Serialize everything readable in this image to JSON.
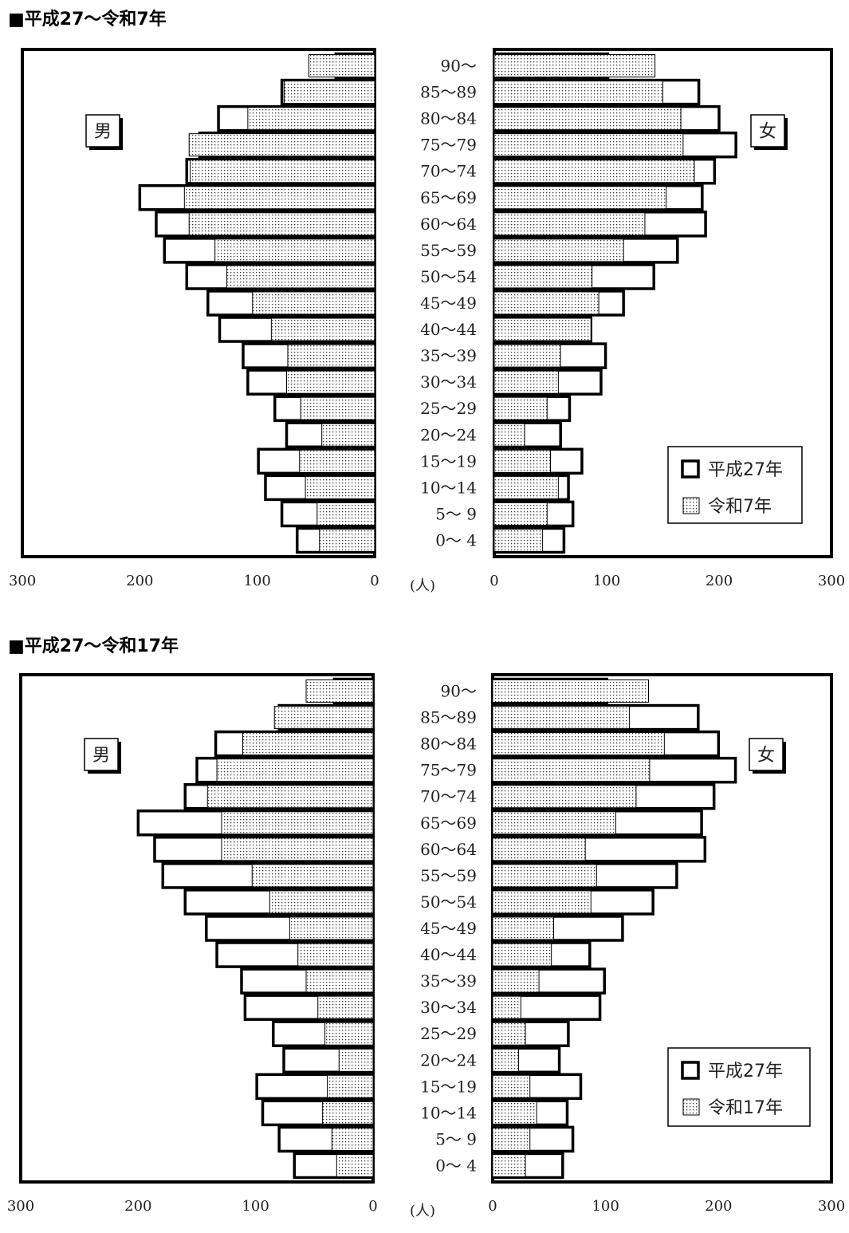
{
  "chart_data": [
    {
      "type": "bar",
      "title": "■平成27～令和7年",
      "unit_label": "(人)",
      "male_label": "男",
      "female_label": "女",
      "categories": [
        "90～",
        "85～89",
        "80～84",
        "75～79",
        "70～74",
        "65～69",
        "60～64",
        "55～59",
        "50～54",
        "45～49",
        "40～44",
        "35～39",
        "30～34",
        "25～29",
        "20～24",
        "15～19",
        "10～14",
        "5～ 9",
        "0～ 4"
      ],
      "x_ticks": [
        "300",
        "200",
        "100",
        "0"
      ],
      "x_ticks_right": [
        "0",
        "100",
        "200",
        "300"
      ],
      "xlim": [
        0,
        300
      ],
      "series": [
        {
          "name": "平成27年",
          "fill": "white",
          "male": [
            33,
            79,
            133,
            149,
            160,
            200,
            186,
            179,
            160,
            142,
            132,
            112,
            108,
            85,
            75,
            99,
            93,
            79,
            66
          ],
          "female": [
            101,
            182,
            200,
            215,
            196,
            185,
            188,
            163,
            142,
            115,
            86,
            99,
            95,
            67,
            59,
            78,
            66,
            70,
            62
          ]
        },
        {
          "name": "令和7年",
          "fill": "dotted",
          "male": [
            56,
            77,
            108,
            158,
            157,
            162,
            158,
            136,
            126,
            104,
            88,
            74,
            75,
            63,
            45,
            64,
            59,
            49,
            47
          ],
          "female": [
            143,
            150,
            166,
            168,
            178,
            153,
            134,
            115,
            87,
            93,
            86,
            59,
            57,
            47,
            27,
            50,
            57,
            47,
            43
          ]
        }
      ]
    },
    {
      "type": "bar",
      "title": "■平成27～令和17年",
      "unit_label": "(人)",
      "male_label": "男",
      "female_label": "女",
      "categories": [
        "90～",
        "85～89",
        "80～84",
        "75～79",
        "70～74",
        "65～69",
        "60～64",
        "55～59",
        "50～54",
        "45～49",
        "40～44",
        "35～39",
        "30～34",
        "25～29",
        "20～24",
        "15～19",
        "10～14",
        "5～ 9",
        "0～ 4"
      ],
      "x_ticks": [
        "300",
        "200",
        "100",
        "0"
      ],
      "x_ticks_right": [
        "0",
        "100",
        "200",
        "300"
      ],
      "xlim": [
        0,
        300
      ],
      "series": [
        {
          "name": "平成27年",
          "fill": "white",
          "male": [
            33,
            80,
            134,
            150,
            160,
            200,
            186,
            179,
            160,
            142,
            133,
            112,
            109,
            85,
            76,
            99,
            94,
            80,
            67
          ],
          "female": [
            101,
            182,
            200,
            215,
            196,
            185,
            188,
            163,
            142,
            115,
            86,
            99,
            95,
            67,
            59,
            78,
            66,
            71,
            62
          ]
        },
        {
          "name": "令和17年",
          "fill": "dotted",
          "male": [
            57,
            84,
            111,
            133,
            141,
            129,
            129,
            103,
            88,
            71,
            64,
            57,
            47,
            41,
            29,
            39,
            43,
            35,
            31
          ]
        },
        {
          "name": "令和17年_female",
          "fill": "dotted",
          "female": [
            138,
            121,
            152,
            139,
            127,
            109,
            82,
            92,
            87,
            54,
            52,
            41,
            25,
            29,
            23,
            33,
            39,
            33,
            29
          ]
        }
      ]
    }
  ]
}
